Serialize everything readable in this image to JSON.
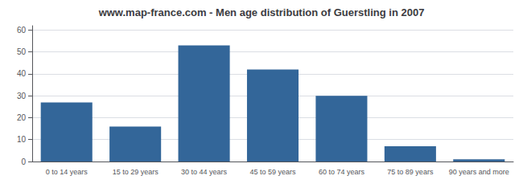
{
  "chart_data": {
    "type": "bar",
    "title": "www.map-france.com - Men age distribution of Guerstling in 2007",
    "categories": [
      "0 to 14 years",
      "15 to 29 years",
      "30 to 44 years",
      "45 to 59 years",
      "60 to 74 years",
      "75 to 89 years",
      "90 years and more"
    ],
    "values": [
      27,
      16,
      53,
      42,
      30,
      7,
      1
    ],
    "color": "#336699",
    "ylim": [
      0,
      62
    ],
    "yticks": [
      0,
      10,
      20,
      30,
      40,
      50,
      60
    ],
    "grid": true
  }
}
